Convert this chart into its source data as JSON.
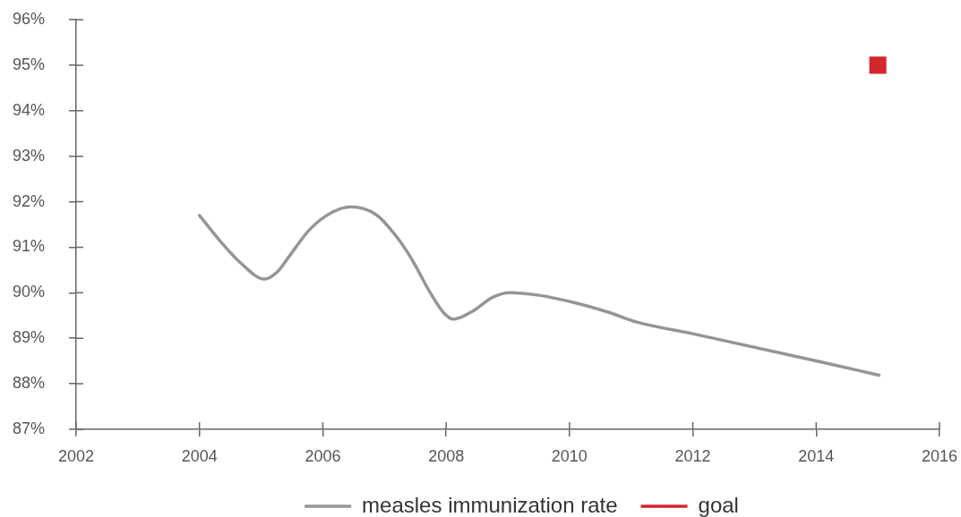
{
  "chart_data": {
    "type": "line",
    "xlim": [
      2002,
      2016
    ],
    "xticks": [
      2002,
      2004,
      2006,
      2008,
      2010,
      2012,
      2014,
      2016
    ],
    "ylim": [
      87,
      96
    ],
    "yticks": [
      {
        "value": 87,
        "label": "87%"
      },
      {
        "value": 88,
        "label": "88%"
      },
      {
        "value": 89,
        "label": "89%"
      },
      {
        "value": 90,
        "label": "90%"
      },
      {
        "value": 91,
        "label": "91%"
      },
      {
        "value": 92,
        "label": "92%"
      },
      {
        "value": 93,
        "label": "93%"
      },
      {
        "value": 94,
        "label": "94%"
      },
      {
        "value": 95,
        "label": "95%"
      },
      {
        "value": 96,
        "label": "96%"
      }
    ],
    "legend": "bottom",
    "series": [
      {
        "name": "measles immunization rate",
        "color": "#939598",
        "marker": "none",
        "x": [
          2004.0,
          2004.39,
          2004.68,
          2005.05,
          2005.27,
          2005.46,
          2005.78,
          2006.14,
          2006.45,
          2006.86,
          2007.22,
          2007.45,
          2007.73,
          2007.96,
          2008.12,
          2008.46,
          2008.74,
          2009.04,
          2009.48,
          2010.06,
          2010.64,
          2011.08,
          2012.0,
          2014.02,
          2015.02
        ],
        "values": [
          91.7,
          91.05,
          90.64,
          90.3,
          90.47,
          90.81,
          91.38,
          91.76,
          91.89,
          91.72,
          91.19,
          90.72,
          90.03,
          89.56,
          89.42,
          89.62,
          89.89,
          90.0,
          89.95,
          89.79,
          89.57,
          89.36,
          89.1,
          88.5,
          88.19
        ]
      },
      {
        "name": "goal",
        "type": "scatter",
        "color": "#d4262d",
        "marker": "square",
        "x": [
          2015
        ],
        "values": [
          95
        ]
      }
    ]
  }
}
